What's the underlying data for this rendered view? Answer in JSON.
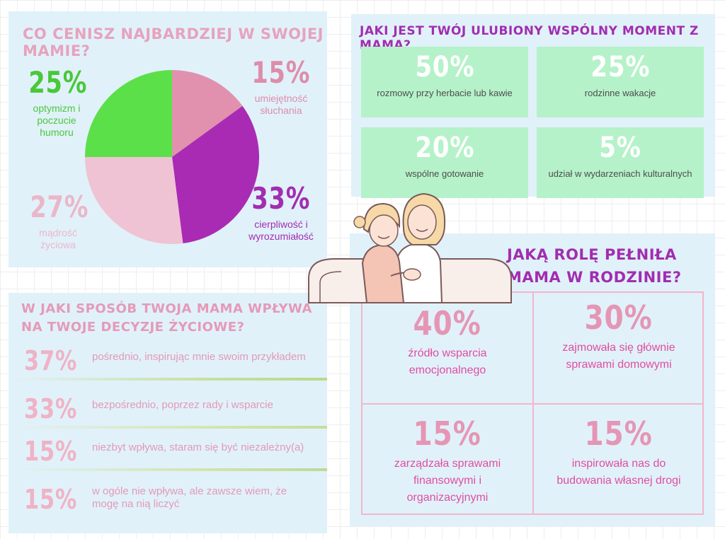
{
  "colors": {
    "panel_bg": "#e1f1fa",
    "pink": "#e596b4",
    "purple": "#a12db0",
    "green": "#5ad947",
    "mint": "#b5f2c9"
  },
  "chart_data": [
    {
      "type": "pie",
      "title": "CO CENISZ NAJBARDZIEJ W SWOJEJ MAMIE?",
      "slices": [
        {
          "label": "umiejętność słuchania",
          "value": 15,
          "display": "15%",
          "color": "#e191ae",
          "label_color": "#dd8daa"
        },
        {
          "label": "cierpliwość i wyrozumiałość",
          "value": 33,
          "display": "33%",
          "color": "#a92bb4",
          "label_color": "#a12db0"
        },
        {
          "label": "mądrość życiowa",
          "value": 27,
          "display": "27%",
          "color": "#efc3d3",
          "label_color": "#eab7c9"
        },
        {
          "label": "optymizm i poczucie humoru",
          "value": 25,
          "display": "25%",
          "color": "#5ce04a",
          "label_color": "#49c83a"
        }
      ]
    },
    {
      "type": "table",
      "title": "JAKI JEST TWÓJ ULUBIONY WSPÓLNY MOMENT Z MAMĄ?",
      "items": [
        {
          "value": 50,
          "display": "50%",
          "label": "rozmowy przy herbacie lub kawie"
        },
        {
          "value": 25,
          "display": "25%",
          "label": "rodzinne wakacje"
        },
        {
          "value": 20,
          "display": "20%",
          "label": "wspólne gotowanie"
        },
        {
          "value": 5,
          "display": "5%",
          "label": "udział w wydarzeniach kulturalnych"
        }
      ]
    },
    {
      "type": "table",
      "title": "W JAKI SPOSÓB TWOJA MAMA WPŁYWA NA TWOJE DECYZJE ŻYCIOWE?",
      "items": [
        {
          "value": 37,
          "display": "37%",
          "label": "pośrednio, inspirując mnie swoim przykładem"
        },
        {
          "value": 33,
          "display": "33%",
          "label": "bezpośrednio, poprzez rady i wsparcie"
        },
        {
          "value": 15,
          "display": "15%",
          "label": "niezbyt wpływa, staram się być niezależny(a)"
        },
        {
          "value": 15,
          "display": "15%",
          "label": "w ogóle nie wpływa, ale zawsze wiem, że mogę na nią liczyć"
        }
      ]
    },
    {
      "type": "table",
      "title": "JAKĄ ROLĘ PEŁNIŁA MAMA W RODZINIE?",
      "items": [
        {
          "value": 40,
          "display": "40%",
          "label": "źródło wsparcia emocjonalnego"
        },
        {
          "value": 30,
          "display": "30%",
          "label": "zajmowała się głównie sprawami domowymi"
        },
        {
          "value": 15,
          "display": "15%",
          "label": "zarządzała sprawami finansowymi i organizacyjnymi"
        },
        {
          "value": 15,
          "display": "15%",
          "label": "inspirowała nas do budowania własnej drogi"
        }
      ]
    }
  ]
}
